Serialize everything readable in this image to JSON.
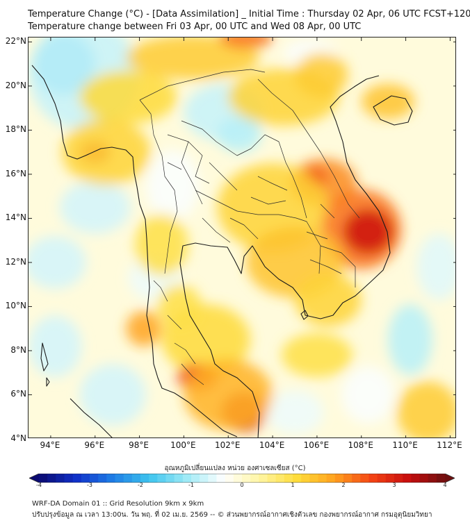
{
  "title_line1": "Temperature Change (°C) - [Data Assimilation] _ Initial Time : Thursday 02 Apr, 06 UTC FCST+120",
  "title_line2": "Temperature change between Fri 03 Apr, 00 UTC and Wed 08 Apr, 00 UTC",
  "map": {
    "lon_range": [
      93,
      112.3
    ],
    "lat_range": [
      4,
      22.2
    ],
    "lat_ticks": [
      "22°N",
      "20°N",
      "18°N",
      "16°N",
      "14°N",
      "12°N",
      "10°N",
      "8°N",
      "6°N",
      "4°N"
    ],
    "lat_values": [
      22,
      20,
      18,
      16,
      14,
      12,
      10,
      8,
      6,
      4
    ],
    "lon_ticks": [
      "94°E",
      "96°E",
      "98°E",
      "100°E",
      "102°E",
      "104°E",
      "106°E",
      "108°E",
      "110°E",
      "112°E"
    ],
    "lon_values": [
      94,
      96,
      98,
      100,
      102,
      104,
      106,
      108,
      110,
      112
    ],
    "field_blobs": [
      {
        "lon": 94.6,
        "lat": 21.0,
        "rx": 1.4,
        "ry": 1.4,
        "value": -1.8
      },
      {
        "lon": 95.5,
        "lat": 20.5,
        "rx": 2.5,
        "ry": 2.5,
        "value": -0.8
      },
      {
        "lon": 101.8,
        "lat": 18.8,
        "rx": 1.8,
        "ry": 1.3,
        "value": -0.8
      },
      {
        "lon": 102.5,
        "lat": 17.8,
        "rx": 1.0,
        "ry": 0.8,
        "value": -0.9
      },
      {
        "lon": 96.0,
        "lat": 14.5,
        "rx": 1.6,
        "ry": 1.2,
        "value": -0.7
      },
      {
        "lon": 94.2,
        "lat": 12.0,
        "rx": 1.4,
        "ry": 1.2,
        "value": -0.7
      },
      {
        "lon": 98.7,
        "lat": 11.3,
        "rx": 1.2,
        "ry": 1.0,
        "value": -0.5
      },
      {
        "lon": 110.2,
        "lat": 8.5,
        "rx": 1.0,
        "ry": 1.6,
        "value": -0.9
      },
      {
        "lon": 111.5,
        "lat": 11.8,
        "rx": 1.0,
        "ry": 1.5,
        "value": -0.6
      },
      {
        "lon": 94.2,
        "lat": 8.2,
        "rx": 1.2,
        "ry": 1.4,
        "value": -0.7
      },
      {
        "lon": 96.8,
        "lat": 6.0,
        "rx": 1.5,
        "ry": 1.4,
        "value": -0.7
      },
      {
        "lon": 105.0,
        "lat": 5.2,
        "rx": 1.3,
        "ry": 1.0,
        "value": -0.5
      },
      {
        "lon": 108.3,
        "lat": 6.0,
        "rx": 1.2,
        "ry": 1.3,
        "value": -0.4
      },
      {
        "lon": 105.7,
        "lat": 21.5,
        "rx": 1.2,
        "ry": 0.6,
        "value": -0.4
      },
      {
        "lon": 99.5,
        "lat": 15.5,
        "rx": 1.2,
        "ry": 1.6,
        "value": -0.4
      },
      {
        "lon": 100.4,
        "lat": 21.3,
        "rx": 3.0,
        "ry": 1.0,
        "value": 1.3
      },
      {
        "lon": 102.8,
        "lat": 22.2,
        "rx": 1.2,
        "ry": 0.5,
        "value": 2.2
      },
      {
        "lon": 97.5,
        "lat": 19.5,
        "rx": 2.2,
        "ry": 1.2,
        "value": 1.1
      },
      {
        "lon": 96.0,
        "lat": 17.0,
        "rx": 0.7,
        "ry": 0.5,
        "value": 2.8
      },
      {
        "lon": 96.5,
        "lat": 17.0,
        "rx": 2.0,
        "ry": 1.5,
        "value": 1.2
      },
      {
        "lon": 104.5,
        "lat": 19.5,
        "rx": 2.5,
        "ry": 1.3,
        "value": 1.2
      },
      {
        "lon": 106.2,
        "lat": 20.5,
        "rx": 1.2,
        "ry": 1.0,
        "value": 1.3
      },
      {
        "lon": 109.2,
        "lat": 19.3,
        "rx": 1.2,
        "ry": 0.8,
        "value": 1.4
      },
      {
        "lon": 106.3,
        "lat": 15.6,
        "rx": 1.5,
        "ry": 1.1,
        "value": 2.0
      },
      {
        "lon": 105.8,
        "lat": 15.8,
        "rx": 0.6,
        "ry": 0.5,
        "value": 2.6
      },
      {
        "lon": 104.0,
        "lat": 14.5,
        "rx": 2.5,
        "ry": 2.0,
        "value": 1.2
      },
      {
        "lon": 108.0,
        "lat": 13.5,
        "rx": 1.8,
        "ry": 1.8,
        "value": 2.2
      },
      {
        "lon": 108.3,
        "lat": 13.4,
        "rx": 1.1,
        "ry": 1.0,
        "value": 3.2
      },
      {
        "lon": 105.0,
        "lat": 12.0,
        "rx": 2.2,
        "ry": 1.6,
        "value": 1.4
      },
      {
        "lon": 106.5,
        "lat": 10.3,
        "rx": 1.5,
        "ry": 1.2,
        "value": 1.2
      },
      {
        "lon": 99.0,
        "lat": 12.8,
        "rx": 1.2,
        "ry": 1.4,
        "value": 1.0
      },
      {
        "lon": 98.2,
        "lat": 9.0,
        "rx": 0.8,
        "ry": 0.8,
        "value": 1.8
      },
      {
        "lon": 101.0,
        "lat": 8.5,
        "rx": 2.0,
        "ry": 1.6,
        "value": 1.1
      },
      {
        "lon": 100.6,
        "lat": 6.8,
        "rx": 0.9,
        "ry": 0.6,
        "value": 2.6
      },
      {
        "lon": 102.7,
        "lat": 5.2,
        "rx": 1.0,
        "ry": 0.9,
        "value": 3.0
      },
      {
        "lon": 102.0,
        "lat": 6.0,
        "rx": 2.0,
        "ry": 1.6,
        "value": 1.6
      },
      {
        "lon": 106.0,
        "lat": 7.8,
        "rx": 1.6,
        "ry": 1.0,
        "value": 1.0
      },
      {
        "lon": 111.0,
        "lat": 5.2,
        "rx": 1.4,
        "ry": 1.4,
        "value": 1.3
      },
      {
        "lon": 99.8,
        "lat": 10.0,
        "rx": 1.0,
        "ry": 1.0,
        "value": 1.0
      }
    ]
  },
  "colorbar": {
    "label": "อุณหภูมิเปลี่ยนแปลง หน่วย องศาเซลเซียส (°C)",
    "min": -4,
    "max": 4,
    "ticks": [
      "-4",
      "-3",
      "-2",
      "-1",
      "0",
      "1",
      "2",
      "3",
      "4"
    ],
    "tick_values": [
      -4,
      -3,
      -2,
      -1,
      0,
      1,
      2,
      3,
      4
    ],
    "colors": [
      "#0a0a70",
      "#1030c8",
      "#1e7ee6",
      "#3ec4ee",
      "#9eeaf6",
      "#ffffff",
      "#fff5a0",
      "#fedc3a",
      "#ffa21e",
      "#f44414",
      "#c80e0e",
      "#6e0f0f"
    ]
  },
  "footer": {
    "line1": "WRF-DA Domain 01 :: Grid Resolution 9km x 9km",
    "line2": "ปรับปรุงข้อมูล ณ เวลา 13:00น. วัน พฤ. ที่ 02 เม.ย. 2569 -- © ส่วนพยากรณ์อากาศเชิงตัวเลข กองพยากรณ์อากาศ กรมอุตุนิยมวิทยา"
  }
}
